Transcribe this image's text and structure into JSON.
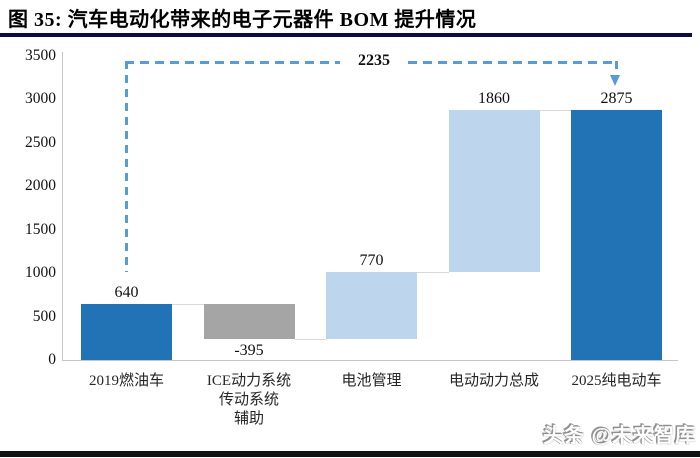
{
  "figure": {
    "title": "图 35:  汽车电动化带来的电子元器件 BOM 提升情况",
    "watermark": "头条 @未来智库"
  },
  "chart_data": {
    "type": "bar",
    "subtype": "waterfall",
    "title": "汽车电动化带来的电子元器件 BOM 提升情况",
    "categories": [
      "2019燃油车",
      "ICE动力系统 传动系统 辅助",
      "电池管理",
      "电动动力总成",
      "2025纯电动车"
    ],
    "bars": [
      {
        "category_lines": [
          "2019燃油车"
        ],
        "label": "640",
        "value": 640,
        "from": 0,
        "to": 640,
        "color": "dark_blue",
        "label_position": "above"
      },
      {
        "category_lines": [
          "ICE动力系统",
          "传动系统",
          "辅助"
        ],
        "label": "-395",
        "value": -395,
        "from": 640,
        "to": 245,
        "color": "gray",
        "label_position": "below"
      },
      {
        "category_lines": [
          "电池管理"
        ],
        "label": "770",
        "value": 770,
        "from": 245,
        "to": 1015,
        "color": "light_blue",
        "label_position": "above"
      },
      {
        "category_lines": [
          "电动动力总成"
        ],
        "label": "1860",
        "value": 1860,
        "from": 1015,
        "to": 2875,
        "color": "light_blue",
        "label_position": "above"
      },
      {
        "category_lines": [
          "2025纯电动车"
        ],
        "label": "2875",
        "value": 2875,
        "from": 0,
        "to": 2875,
        "color": "dark_blue",
        "label_position": "above"
      }
    ],
    "connector_levels": [
      640,
      245,
      1015,
      2875
    ],
    "annotation": {
      "label": "2235",
      "value": 2235,
      "from_bar": 0,
      "to_bar": 4,
      "style": "dashed-arrow"
    },
    "y_axis": {
      "min": 0,
      "max": 3500,
      "ticks": [
        0,
        500,
        1000,
        1500,
        2000,
        2500,
        3000,
        3500
      ]
    },
    "x_axis_labels_multiline": true,
    "grid": false,
    "legend": false,
    "colors": {
      "dark_blue": "#2173b5",
      "light_blue": "#bdd6ee",
      "gray": "#a5a5a5",
      "dashed_line": "#5b9bd5",
      "axis": "#c6c6c6",
      "connector": "#d9d9d9",
      "title_underline": "#0d0d3d"
    }
  }
}
